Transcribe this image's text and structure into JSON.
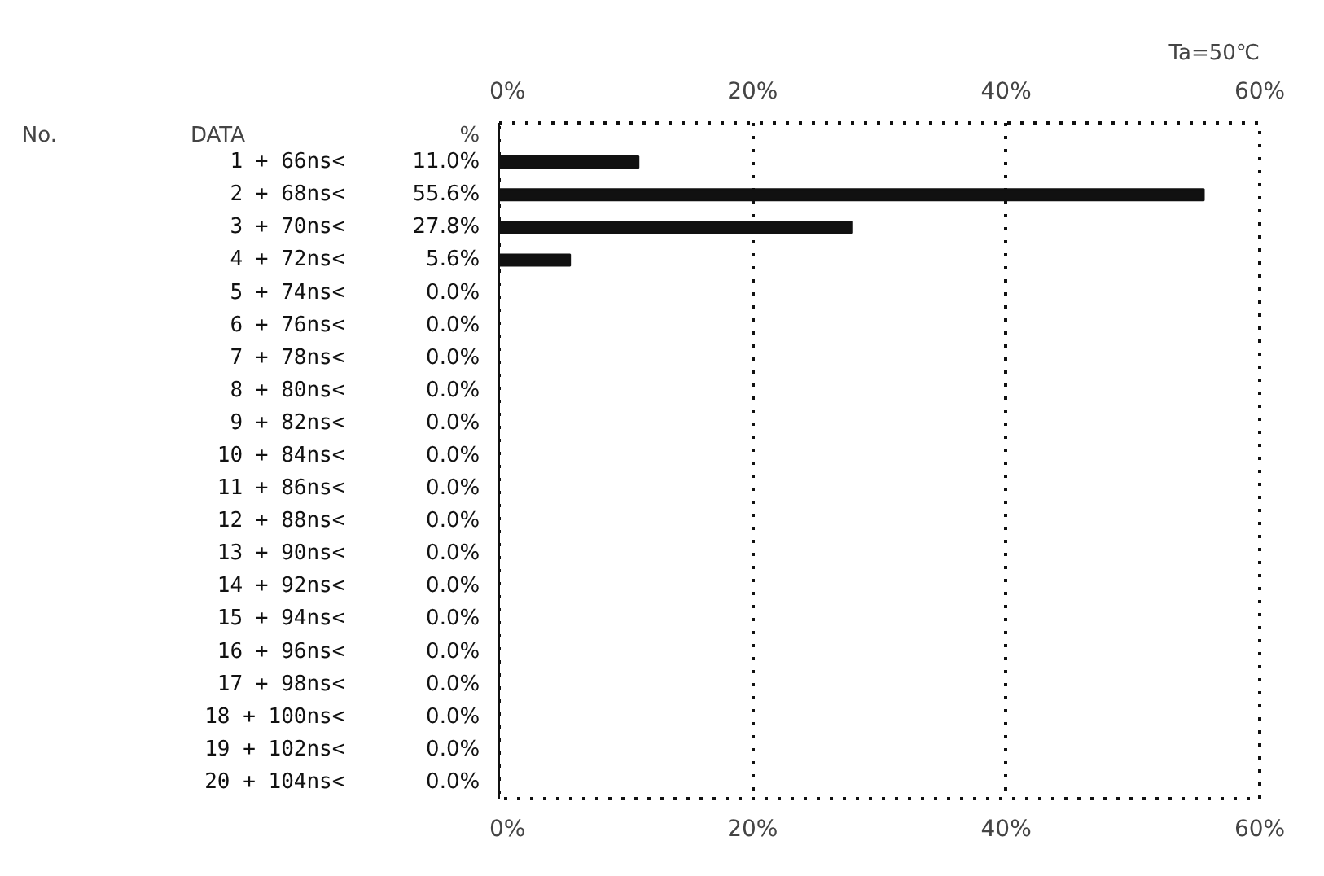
{
  "chart_data": {
    "type": "bar",
    "orientation": "horizontal",
    "title": "Ta=50℃",
    "categories": [
      "1 + 66ns<",
      "2 + 68ns<",
      "3 + 70ns<",
      "4 + 72ns<",
      "5 + 74ns<",
      "6 + 76ns<",
      "7 + 78ns<",
      "8 + 80ns<",
      "9 + 82ns<",
      "10 + 84ns<",
      "11 + 86ns<",
      "12 + 88ns<",
      "13 + 90ns<",
      "14 + 92ns<",
      "15 + 94ns<",
      "16 + 96ns<",
      "17 + 98ns<",
      "18 + 100ns<",
      "19 + 102ns<",
      "20 + 104ns<"
    ],
    "values": [
      11.0,
      55.6,
      27.8,
      5.6,
      0,
      0,
      0,
      0,
      0,
      0,
      0,
      0,
      0,
      0,
      0,
      0,
      0,
      0,
      0,
      0
    ],
    "value_labels": [
      "11.0%",
      "55.6%",
      "27.8%",
      "5.6%",
      "0.0%",
      "0.0%",
      "0.0%",
      "0.0%",
      "0.0%",
      "0.0%",
      "0.0%",
      "0.0%",
      "0.0%",
      "0.0%",
      "0.0%",
      "0.0%",
      "0.0%",
      "0.0%",
      "0.0%",
      "0.0%"
    ],
    "color": "#111111",
    "xlim": [
      0,
      60
    ],
    "xticks": [
      {
        "value": 0,
        "label": "0%"
      },
      {
        "value": 20,
        "label": "20%"
      },
      {
        "value": 40,
        "label": "40%"
      },
      {
        "value": 60,
        "label": "60%"
      }
    ],
    "x2lim": [
      0,
      60
    ],
    "x2ticks": [
      {
        "value": 0,
        "label": "0%"
      },
      {
        "value": 20,
        "label": "20%"
      },
      {
        "value": 40,
        "label": "40%"
      },
      {
        "value": 60,
        "label": "60%"
      }
    ],
    "grid": "x",
    "annotations": [
      "No.",
      "DATA",
      "%"
    ]
  }
}
